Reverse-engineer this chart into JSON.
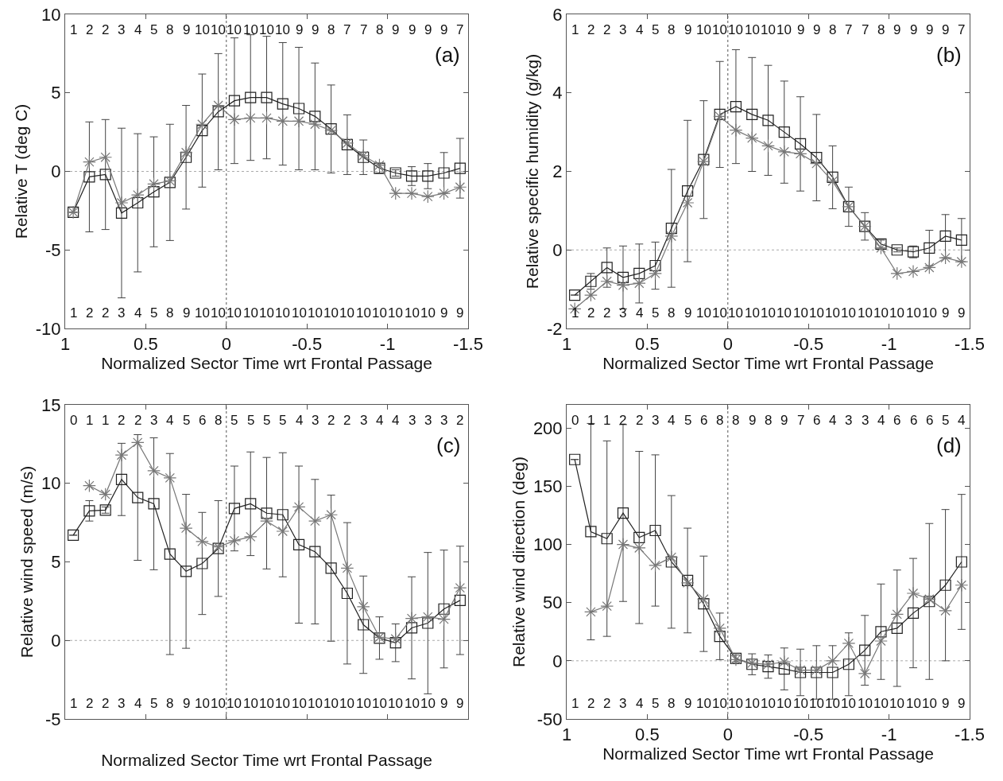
{
  "chart_data": [
    {
      "type": "line",
      "xlabel": "Normalized Sector Time wrt Frontal Passage",
      "ylabel": "Relative T (deg C)",
      "xlim": [
        1,
        -1.5
      ],
      "xticks": [
        1,
        0.5,
        0,
        -0.5,
        -1,
        -1.5
      ],
      "ylim": [
        -10,
        10
      ],
      "yticks": [
        -10,
        -5,
        0,
        5,
        10
      ],
      "grid": false,
      "x": [
        0.95,
        0.85,
        0.75,
        0.65,
        0.55,
        0.45,
        0.35,
        0.25,
        0.15,
        0.05,
        -0.05,
        -0.15,
        -0.25,
        -0.35,
        -0.45,
        -0.55,
        -0.65,
        -0.75,
        -0.85,
        -0.95,
        -1.05,
        -1.15,
        -1.25,
        -1.35,
        -1.45
      ],
      "ref_lines": [
        {
          "axis": "y",
          "value": 0,
          "color": "#aaaaaa",
          "line_style": "dotted"
        },
        {
          "axis": "x",
          "value": 0,
          "color": "#555555",
          "line_style": "dotted"
        }
      ],
      "series": [
        {
          "color": "#222222",
          "marker": "square",
          "values": [
            -2.6,
            -0.35,
            -0.2,
            -2.65,
            -2.0,
            -1.3,
            -0.7,
            0.9,
            2.6,
            3.8,
            4.5,
            4.7,
            4.7,
            4.3,
            4.0,
            3.5,
            2.7,
            1.7,
            0.9,
            0.2,
            -0.1,
            -0.3,
            -0.3,
            -0.1,
            0.2
          ],
          "errors": [
            null,
            3.5,
            3.5,
            5.4,
            4.4,
            3.5,
            3.7,
            3.3,
            3.6,
            3.7,
            4.0,
            4.0,
            3.9,
            3.9,
            3.9,
            3.4,
            2.8,
            1.9,
            1.1,
            0.3,
            0.2,
            0.6,
            0.8,
            1.3,
            1.9
          ]
        },
        {
          "color": "#777777",
          "marker": "cross",
          "values": [
            -2.6,
            0.6,
            0.9,
            -2.0,
            -1.5,
            -0.8,
            -0.6,
            1.2,
            3.0,
            4.2,
            3.3,
            3.4,
            3.4,
            3.2,
            3.2,
            3.0,
            2.6,
            1.8,
            1.0,
            0.4,
            -1.4,
            -1.4,
            -1.6,
            -1.4,
            -1.0
          ]
        }
      ],
      "annotations": [
        "(a)",
        "1",
        "2",
        "2",
        "3",
        "4",
        "5",
        "8",
        "9",
        "10",
        "10",
        "10",
        "10",
        "10",
        "10",
        "9",
        "9",
        "8",
        "7",
        "7",
        "8",
        "9",
        "9",
        "9",
        "9",
        "7",
        "1",
        "2",
        "2",
        "3",
        "4",
        "5",
        "8",
        "9",
        "10",
        "10",
        "10",
        "10",
        "10",
        "10",
        "10",
        "10",
        "10",
        "10",
        "10",
        "10",
        "10",
        "10",
        "10",
        "9",
        "9"
      ]
    },
    {
      "type": "line",
      "xlabel": "Normalized Sector Time wrt Frontal Passage",
      "ylabel": "Relative specific humidity (g/kg)",
      "xlim": [
        1,
        -1.5
      ],
      "xticks": [
        1,
        0.5,
        0,
        -0.5,
        -1,
        -1.5
      ],
      "ylim": [
        -2,
        6
      ],
      "yticks": [
        -2,
        0,
        2,
        4,
        6
      ],
      "grid": false,
      "x": [
        0.95,
        0.85,
        0.75,
        0.65,
        0.55,
        0.45,
        0.35,
        0.25,
        0.15,
        0.05,
        -0.05,
        -0.15,
        -0.25,
        -0.35,
        -0.45,
        -0.55,
        -0.65,
        -0.75,
        -0.85,
        -0.95,
        -1.05,
        -1.15,
        -1.25,
        -1.35,
        -1.45
      ],
      "ref_lines": [
        {
          "axis": "y",
          "value": 0,
          "color": "#aaaaaa",
          "line_style": "dotted"
        },
        {
          "axis": "x",
          "value": 0,
          "color": "#555555",
          "line_style": "dotted"
        }
      ],
      "series": [
        {
          "color": "#222222",
          "marker": "square",
          "values": [
            -1.15,
            -0.8,
            -0.45,
            -0.7,
            -0.6,
            -0.4,
            0.55,
            1.5,
            2.3,
            3.45,
            3.65,
            3.45,
            3.3,
            3.0,
            2.7,
            2.35,
            1.85,
            1.1,
            0.6,
            0.15,
            0.0,
            -0.05,
            0.05,
            0.35,
            0.25
          ],
          "errors": [
            null,
            0.2,
            0.5,
            0.8,
            0.75,
            0.6,
            1.5,
            1.8,
            1.5,
            1.35,
            1.45,
            1.45,
            1.4,
            1.3,
            1.2,
            1.1,
            0.8,
            0.5,
            0.35,
            0.1,
            0.05,
            0.15,
            0.45,
            0.55,
            0.55
          ]
        },
        {
          "color": "#777777",
          "marker": "cross",
          "values": [
            -1.5,
            -1.15,
            -0.8,
            -0.9,
            -0.85,
            -0.6,
            0.35,
            1.2,
            2.25,
            3.4,
            3.05,
            2.85,
            2.65,
            2.5,
            2.45,
            2.2,
            1.75,
            1.1,
            0.6,
            0.05,
            -0.6,
            -0.55,
            -0.45,
            -0.2,
            -0.3
          ]
        }
      ],
      "annotations": [
        "(b)",
        "1",
        "2",
        "2",
        "3",
        "4",
        "5",
        "8",
        "9",
        "10",
        "10",
        "10",
        "10",
        "10",
        "10",
        "9",
        "9",
        "8",
        "7",
        "7",
        "8",
        "9",
        "9",
        "9",
        "9",
        "7",
        "1",
        "2",
        "2",
        "3",
        "4",
        "5",
        "8",
        "9",
        "10",
        "10",
        "10",
        "10",
        "10",
        "10",
        "10",
        "10",
        "10",
        "10",
        "10",
        "10",
        "10",
        "10",
        "10",
        "9",
        "9"
      ]
    },
    {
      "type": "line",
      "xlabel": "Normalized Sector Time wrt Frontal Passage",
      "ylabel": "Relative wind speed (m/s)",
      "xlim": [
        1,
        -1.5
      ],
      "xticks": [
        {
          "value": 1,
          "label": null
        },
        {
          "value": 0.5,
          "label": null
        },
        {
          "value": 0,
          "label": null
        },
        {
          "value": -0.5,
          "label": null
        },
        {
          "value": -1,
          "label": null
        },
        {
          "value": -1.5,
          "label": null
        }
      ],
      "ylim": [
        -5,
        15
      ],
      "yticks": [
        -5,
        0,
        5,
        10,
        15
      ],
      "tick_labels": "y",
      "grid": false,
      "x": [
        0.95,
        0.85,
        0.75,
        0.65,
        0.55,
        0.45,
        0.35,
        0.25,
        0.15,
        0.05,
        -0.05,
        -0.15,
        -0.25,
        -0.35,
        -0.45,
        -0.55,
        -0.65,
        -0.75,
        -0.85,
        -0.95,
        -1.05,
        -1.15,
        -1.25,
        -1.35,
        -1.45
      ],
      "ref_lines": [
        {
          "axis": "y",
          "value": 0,
          "color": "#aaaaaa",
          "line_style": "dotted"
        },
        {
          "axis": "x",
          "value": 0,
          "color": "#555555",
          "line_style": "dotted"
        }
      ],
      "series": [
        {
          "color": "#222222",
          "marker": "square",
          "values": [
            6.7,
            8.25,
            8.3,
            10.25,
            9.1,
            8.7,
            5.5,
            4.4,
            4.9,
            5.85,
            8.4,
            8.7,
            8.1,
            8.0,
            6.1,
            5.65,
            4.6,
            3.0,
            1.0,
            0.15,
            -0.15,
            0.8,
            1.1,
            2.0,
            2.55
          ],
          "errors": [
            null,
            0.65,
            0.2,
            2.3,
            4.0,
            4.2,
            6.4,
            4.9,
            3.25,
            3.05,
            2.7,
            3.3,
            3.55,
            3.95,
            5.0,
            4.6,
            4.65,
            4.5,
            3.1,
            1.35,
            1.2,
            3.25,
            4.5,
            3.75,
            3.45
          ]
        },
        {
          "color": "#777777",
          "marker": "cross",
          "values": [
            null,
            9.85,
            9.3,
            11.8,
            12.6,
            10.8,
            10.35,
            7.15,
            6.3,
            5.95,
            6.35,
            6.6,
            7.6,
            6.95,
            8.5,
            7.6,
            8.0,
            4.6,
            2.15,
            0.2,
            0.1,
            1.4,
            1.5,
            1.35,
            3.35
          ]
        }
      ],
      "annotations": [
        "(c)",
        "0",
        "1",
        "1",
        "2",
        "2",
        "3",
        "4",
        "5",
        "6",
        "8",
        "5",
        "5",
        "5",
        "5",
        "4",
        "3",
        "2",
        "2",
        "3",
        "4",
        "4",
        "3",
        "3",
        "3",
        "2",
        "1",
        "2",
        "2",
        "3",
        "4",
        "5",
        "8",
        "9",
        "10",
        "10",
        "10",
        "10",
        "10",
        "10",
        "10",
        "10",
        "10",
        "10",
        "10",
        "10",
        "10",
        "10",
        "10",
        "9",
        "9"
      ]
    },
    {
      "type": "line",
      "xlabel": "Normalized Sector Time wrt Frontal Passage",
      "ylabel": "Relative wind direction (deg)",
      "xlim": [
        1,
        -1.5
      ],
      "xticks": [
        1,
        0.5,
        0,
        -0.5,
        -1,
        -1.5
      ],
      "ylim": [
        -50,
        220
      ],
      "yticks": [
        -50,
        0,
        50,
        100,
        150,
        200
      ],
      "grid": false,
      "x": [
        0.95,
        0.85,
        0.75,
        0.65,
        0.55,
        0.45,
        0.35,
        0.25,
        0.15,
        0.05,
        -0.05,
        -0.15,
        -0.25,
        -0.35,
        -0.45,
        -0.55,
        -0.65,
        -0.75,
        -0.85,
        -0.95,
        -1.05,
        -1.15,
        -1.25,
        -1.35,
        -1.45
      ],
      "ref_lines": [
        {
          "axis": "y",
          "value": 0,
          "color": "#aaaaaa",
          "line_style": "dotted"
        },
        {
          "axis": "x",
          "value": 0,
          "color": "#555555",
          "line_style": "dotted"
        }
      ],
      "series": [
        {
          "color": "#222222",
          "marker": "square",
          "values": [
            173,
            111,
            105,
            127,
            106,
            112,
            85,
            69,
            49,
            21,
            2,
            -3,
            -5,
            -7,
            -10,
            -10,
            -10,
            -3,
            9,
            25,
            28,
            41,
            51,
            65,
            85
          ],
          "errors": [
            null,
            93,
            84,
            76,
            74,
            65,
            57,
            45,
            41,
            20,
            3,
            9,
            10,
            18,
            20,
            23,
            23,
            27,
            30,
            41,
            50,
            47,
            67,
            65,
            58
          ]
        },
        {
          "color": "#777777",
          "marker": "cross",
          "values": [
            null,
            42,
            47,
            100,
            97,
            82,
            89,
            67,
            53,
            28,
            1,
            -2,
            -3,
            -1,
            -8,
            -8,
            0,
            15,
            -11,
            17,
            40,
            58,
            53,
            43,
            65
          ]
        }
      ],
      "annotations": [
        "(d)",
        "0",
        "1",
        "1",
        "2",
        "2",
        "3",
        "4",
        "5",
        "6",
        "8",
        "8",
        "9",
        "8",
        "9",
        "7",
        "6",
        "4",
        "3",
        "3",
        "4",
        "6",
        "6",
        "6",
        "5",
        "4",
        "1",
        "2",
        "2",
        "3",
        "4",
        "5",
        "8",
        "9",
        "10",
        "10",
        "10",
        "10",
        "10",
        "10",
        "10",
        "10",
        "10",
        "10",
        "10",
        "10",
        "10",
        "10",
        "10",
        "9",
        "9"
      ]
    }
  ]
}
